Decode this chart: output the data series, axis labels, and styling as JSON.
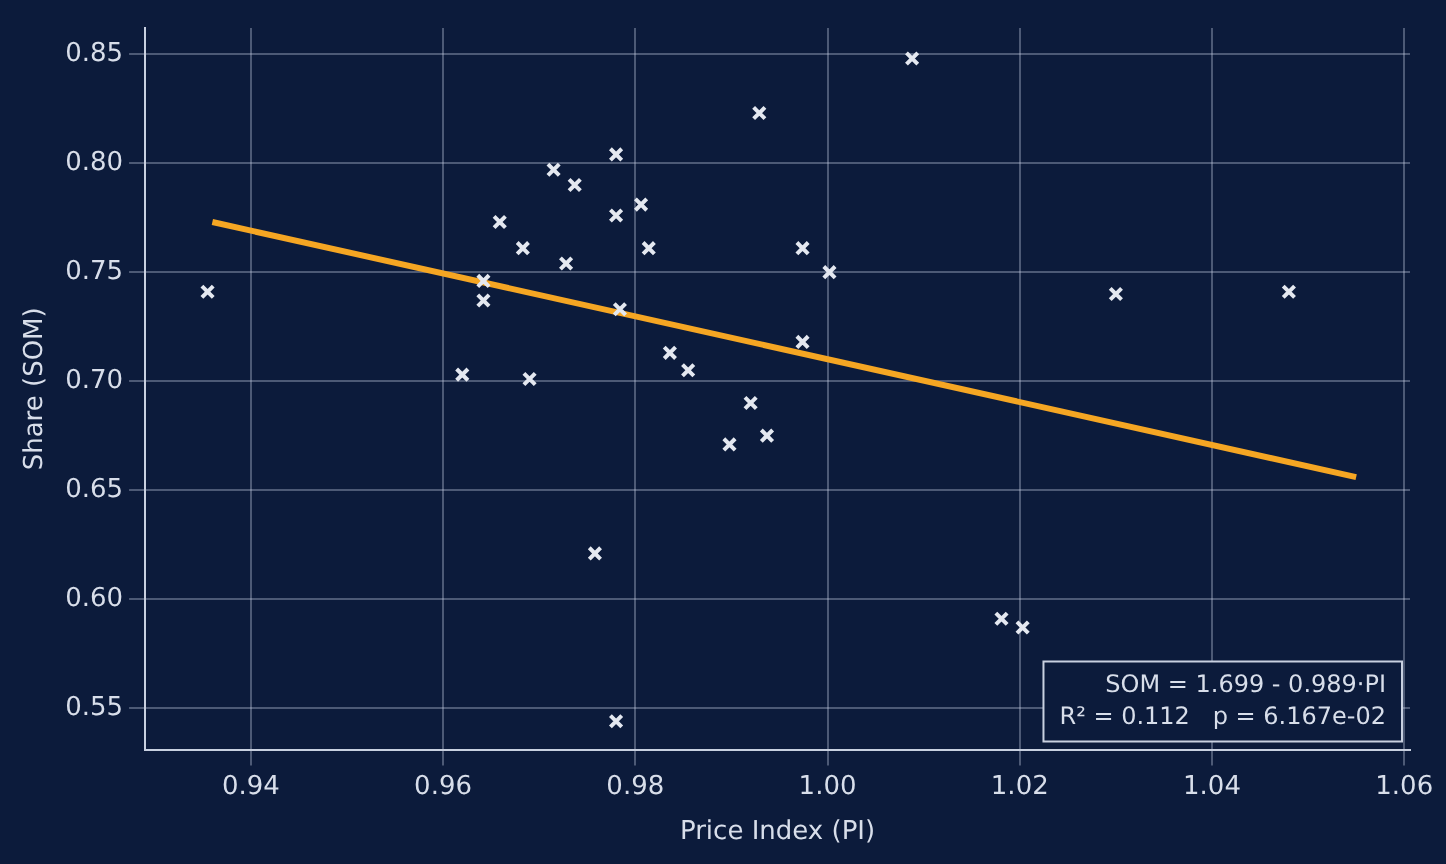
{
  "chart_data": {
    "type": "scatter",
    "xlabel": "Price Index (PI)",
    "ylabel": "Share (SOM)",
    "xlim": [
      0.929,
      1.0606
    ],
    "ylim": [
      0.531,
      0.862
    ],
    "xticks": [
      0.94,
      0.96,
      0.98,
      {
        "value": 1,
        "label": "1.00"
      },
      1.02,
      1.04,
      1.06
    ],
    "yticks": [
      0.55,
      {
        "value": 0.6,
        "label": "0.60"
      },
      0.65,
      {
        "value": 0.7,
        "label": "0.70"
      },
      0.75,
      {
        "value": 0.8,
        "label": "0.80"
      },
      0.85
    ],
    "grid": true,
    "series": [
      {
        "marker": "cross",
        "color": "#e4e8f0",
        "x": [
          0.9929,
          0.978,
          0.9715,
          0.9737,
          0.9806,
          0.978,
          0.9659,
          0.9683,
          0.9814,
          0.9728,
          0.9974,
          0.9355,
          0.9642,
          0.9642,
          0.9784,
          0.9974,
          0.9836,
          0.9855,
          0.962,
          0.969,
          0.992,
          0.9898,
          0.9937,
          0.9758,
          0.978,
          1.0088,
          1.0002,
          1.03,
          1.048,
          1.0203,
          1.0181
        ],
        "values": [
          0.823,
          0.804,
          0.797,
          0.79,
          0.781,
          0.776,
          0.773,
          0.761,
          0.761,
          0.754,
          0.761,
          0.741,
          0.746,
          0.737,
          0.733,
          0.718,
          0.713,
          0.705,
          0.703,
          0.701,
          0.69,
          0.671,
          0.675,
          0.621,
          0.544,
          0.848,
          0.75,
          0.74,
          0.741,
          0.587,
          0.591
        ]
      },
      {
        "type": "line",
        "color": "#f5a623",
        "x": [
          0.936,
          1.055
        ],
        "values": [
          0.773,
          0.656
        ]
      }
    ],
    "annotations": [
      "SOM = 1.699 - 0.989·PI",
      "R² = 0.112   p = 6.167e-02"
    ]
  }
}
